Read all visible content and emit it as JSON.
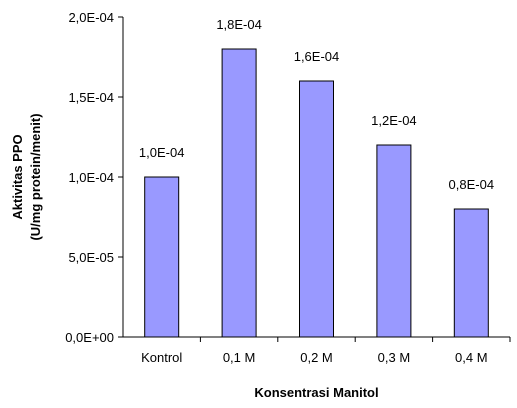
{
  "chart_data": {
    "type": "bar",
    "categories": [
      "Kontrol",
      "0,1 M",
      "0,2 M",
      "0,3 M",
      "0,4 M"
    ],
    "values": [
      0.0001,
      0.00018,
      0.00016,
      0.00012,
      8e-05
    ],
    "data_labels": [
      "1,0E-04",
      "1,8E-04",
      "1,6E-04",
      "1,2E-04",
      "0,8E-04"
    ],
    "title": "",
    "xlabel": "Konsentrasi Manitol",
    "ylabel_line1": "Aktivitas PPO",
    "ylabel_line2": "(U/mg protein/menit)",
    "ylim": [
      0,
      0.0002
    ],
    "yticks": [
      0,
      5e-05,
      0.0001,
      0.00015,
      0.0002
    ],
    "ytick_labels": [
      "0,0E+00",
      "5,0E-05",
      "1,0E-04",
      "1,5E-04",
      "2,0E-04"
    ],
    "grid": false,
    "legend": "none",
    "bar_color": "#9999ff",
    "bar_edge_color": "#000000"
  }
}
